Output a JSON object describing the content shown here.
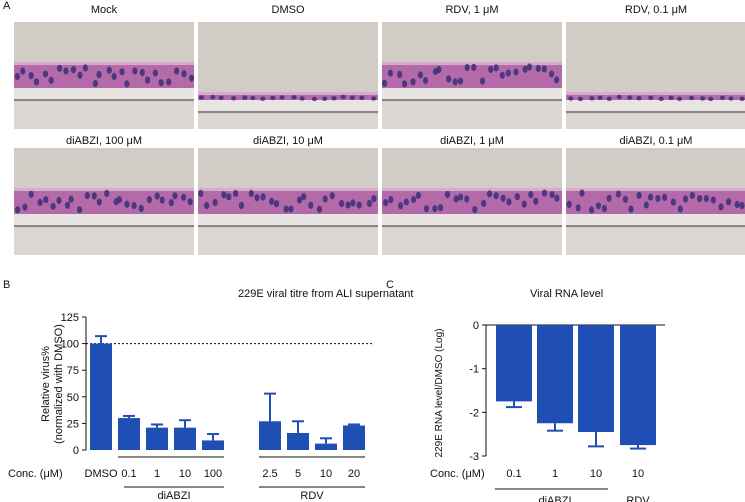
{
  "panel_a": {
    "letter": "A",
    "images": [
      {
        "title": "Mock",
        "state": "thick"
      },
      {
        "title": "DMSO",
        "state": "thin"
      },
      {
        "title": "RDV, 1 μM",
        "state": "thick"
      },
      {
        "title": "RDV, 0.1 μM",
        "state": "thin"
      },
      {
        "title": "diABZI, 100 μM",
        "state": "thick"
      },
      {
        "title": "diABZI, 10 μM",
        "state": "thick"
      },
      {
        "title": "diABZI, 1 μM",
        "state": "thick"
      },
      {
        "title": "diABZI, 0.1 μM",
        "state": "thick"
      }
    ]
  },
  "panel_b": {
    "letter": "B",
    "title": "229E viral titre from ALI supernatant",
    "conc_label": "Conc. (μM)",
    "group1_label": "diABZI",
    "group2_label": "RDV"
  },
  "panel_c": {
    "letter": "C",
    "title": "Viral RNA level",
    "conc_label": "Conc. (μM)",
    "group1_label": "diABZI",
    "group2_label": "RDV"
  },
  "colors": {
    "bar": "#1f4fb5",
    "tissue": "#b46aa8",
    "nuclei": "#3a2f7a",
    "background": "#d2ccc6"
  },
  "chart_data": [
    {
      "type": "bar",
      "title": "229E viral titre from ALI supernatant",
      "ylabel_line1": "Relative virus%",
      "ylabel_line2": "(normalized with DMSO)",
      "xlabel": "Conc. (μM)",
      "categories": [
        "DMSO",
        "0.1",
        "1",
        "10",
        "100",
        "2.5",
        "5",
        "10",
        "20"
      ],
      "values": [
        100,
        30,
        21,
        21,
        9,
        27,
        16,
        6,
        23
      ],
      "errors": [
        7,
        2,
        3,
        7,
        6,
        26,
        11,
        5,
        1
      ],
      "groups": [
        {
          "name": "diABZI",
          "members": [
            "0.1",
            "1",
            "10",
            "100"
          ]
        },
        {
          "name": "RDV",
          "members": [
            "2.5",
            "5",
            "10",
            "20"
          ]
        }
      ],
      "ylim": [
        0,
        125
      ],
      "yticks": [
        "0",
        "25",
        "50",
        "75",
        "100",
        "125"
      ],
      "reference_line": 100
    },
    {
      "type": "bar",
      "title": "Viral RNA level",
      "ylabel": "229E RNA level/DMSO (Log)",
      "xlabel": "Conc. (μM)",
      "categories": [
        "0.1",
        "1",
        "10",
        "10"
      ],
      "values": [
        -1.75,
        -2.25,
        -2.45,
        -2.75
      ],
      "errors": [
        0.13,
        0.17,
        0.33,
        0.08
      ],
      "groups": [
        {
          "name": "diABZI",
          "members": [
            "0.1",
            "1",
            "10"
          ]
        },
        {
          "name": "RDV",
          "members": [
            "10"
          ]
        }
      ],
      "ylim": [
        -3,
        0
      ],
      "yticks": [
        "0",
        "-1",
        "-2",
        "-3"
      ]
    }
  ]
}
